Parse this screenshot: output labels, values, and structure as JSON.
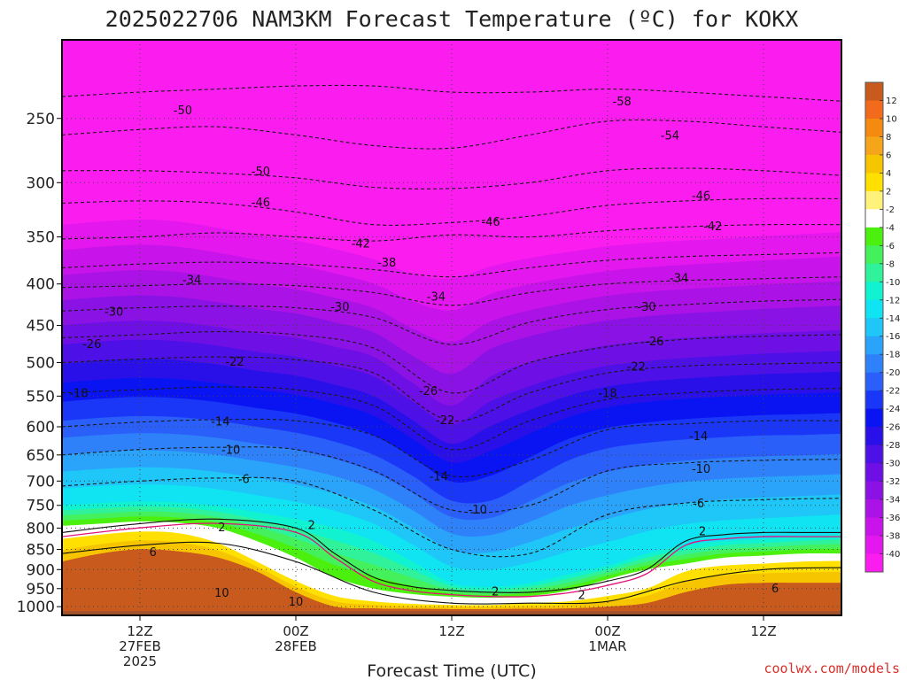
{
  "chart_data": {
    "type": "heatmap",
    "title": "2025022706 NAM3KM Forecast Temperature (ºC) for KOKX",
    "xlabel": "Forecast Time (UTC)",
    "ylabel": "",
    "credit": "coolwx.com/models",
    "y_axis": {
      "scale": "log",
      "range_hPa": [
        1025,
        200
      ],
      "reversed": true,
      "ticks": [
        "250",
        "300",
        "350",
        "400",
        "450",
        "500",
        "550",
        "600",
        "650",
        "700",
        "750",
        "800",
        "850",
        "900",
        "950",
        "1000"
      ]
    },
    "x_axis": {
      "range_hours": [
        0,
        60
      ],
      "ticks": [
        {
          "hour": 6,
          "lines": [
            "12Z",
            "27FEB",
            "2025"
          ]
        },
        {
          "hour": 18,
          "lines": [
            "00Z",
            "28FEB"
          ]
        },
        {
          "hour": 30,
          "lines": [
            "12Z"
          ]
        },
        {
          "hour": 42,
          "lines": [
            "00Z",
            "1MAR"
          ]
        },
        {
          "hour": 54,
          "lines": [
            "12Z"
          ]
        }
      ]
    },
    "grid": true,
    "fill_bands_hPa": {
      "x": [
        0,
        3,
        6,
        9,
        12,
        15,
        18,
        21,
        24,
        27,
        30,
        33,
        36,
        39,
        42,
        45,
        48,
        51,
        54,
        57,
        60
      ],
      "temperatures": [
        -40,
        -30,
        -20,
        -10,
        -2,
        2,
        6
      ],
      "pressures": [
        [
          315,
          312,
          310,
          312,
          318,
          325,
          330,
          338,
          348,
          360,
          360,
          352,
          345,
          340,
          335,
          332,
          330,
          328,
          326,
          324,
          322
        ],
        [
          450,
          446,
          444,
          446,
          452,
          460,
          466,
          478,
          492,
          530,
          565,
          520,
          500,
          486,
          476,
          470,
          466,
          463,
          460,
          458,
          456
        ],
        [
          590,
          585,
          582,
          584,
          590,
          600,
          610,
          626,
          650,
          690,
          740,
          740,
          700,
          660,
          638,
          628,
          622,
          618,
          615,
          614,
          612
        ],
        [
          750,
          745,
          742,
          744,
          752,
          765,
          780,
          800,
          830,
          880,
          935,
          945,
          935,
          912,
          890,
          860,
          840,
          830,
          825,
          820,
          815
        ],
        [
          795,
          790,
          785,
          788,
          800,
          830,
          870,
          920,
          950,
          965,
          972,
          975,
          970,
          955,
          925,
          900,
          885,
          870,
          865,
          860,
          860
        ],
        [
          825,
          815,
          808,
          812,
          835,
          880,
          930,
          970,
          985,
          992,
          995,
          995,
          990,
          985,
          970,
          950,
          905,
          890,
          885,
          880,
          878
        ],
        [
          880,
          860,
          850,
          855,
          870,
          905,
          960,
          1000,
          1005,
          1006,
          1007,
          1007,
          1006,
          1005,
          1000,
          990,
          960,
          940,
          935,
          935,
          935
        ]
      ]
    },
    "contours": [
      {
        "value": -58,
        "label": "-58",
        "x": [
          0,
          6,
          12,
          18,
          24,
          30,
          36,
          42,
          48,
          54,
          60
        ],
        "p": [
          235,
          232,
          230,
          228,
          228,
          232,
          232,
          230,
          232,
          235,
          238
        ]
      },
      {
        "value": -54,
        "label": "-54",
        "x": [
          0,
          6,
          12,
          18,
          24,
          30,
          36,
          42,
          48,
          54,
          60
        ],
        "p": [
          262,
          258,
          256,
          262,
          270,
          272,
          262,
          252,
          252,
          256,
          260
        ]
      },
      {
        "value": -50,
        "label": "-50",
        "x": [
          0,
          6,
          12,
          18,
          24,
          30,
          36,
          42,
          48,
          54,
          60
        ],
        "p": [
          290,
          290,
          292,
          296,
          304,
          305,
          300,
          290,
          288,
          290,
          294
        ]
      },
      {
        "value": -46,
        "label": "-46",
        "x": [
          0,
          6,
          12,
          18,
          24,
          30,
          36,
          42,
          48,
          54,
          60
        ],
        "p": [
          318,
          316,
          318,
          326,
          338,
          336,
          330,
          320,
          316,
          314,
          314
        ]
      },
      {
        "value": -42,
        "label": "-42",
        "x": [
          0,
          6,
          12,
          18,
          24,
          30,
          36,
          42,
          48,
          54,
          60
        ],
        "p": [
          352,
          350,
          346,
          350,
          354,
          348,
          350,
          344,
          340,
          338,
          338
        ]
      },
      {
        "value": -38,
        "label": "-38",
        "x": [
          0,
          6,
          12,
          18,
          24,
          30,
          36,
          42,
          48,
          54,
          60
        ],
        "p": [
          382,
          378,
          376,
          378,
          384,
          392,
          382,
          374,
          370,
          368,
          366
        ]
      },
      {
        "value": -34,
        "label": "-34",
        "x": [
          0,
          6,
          12,
          18,
          24,
          30,
          36,
          42,
          48,
          54,
          60
        ],
        "p": [
          404,
          402,
          400,
          402,
          410,
          425,
          410,
          400,
          396,
          394,
          392
        ]
      },
      {
        "value": -30,
        "label": "-30",
        "x": [
          0,
          6,
          12,
          18,
          24,
          30,
          36,
          42,
          48,
          54,
          60
        ],
        "p": [
          432,
          428,
          426,
          428,
          440,
          475,
          446,
          430,
          424,
          420,
          418
        ]
      },
      {
        "value": -26,
        "label": "-26",
        "x": [
          0,
          6,
          12,
          18,
          24,
          30,
          36,
          42,
          48,
          54,
          60
        ],
        "p": [
          466,
          462,
          458,
          462,
          480,
          545,
          500,
          478,
          468,
          464,
          462
        ]
      },
      {
        "value": -22,
        "label": "-22",
        "x": [
          0,
          6,
          12,
          18,
          24,
          30,
          36,
          42,
          48,
          54,
          60
        ],
        "p": [
          500,
          495,
          492,
          496,
          515,
          590,
          545,
          515,
          505,
          502,
          500
        ]
      },
      {
        "value": -18,
        "label": "-18",
        "x": [
          0,
          6,
          12,
          18,
          24,
          30,
          36,
          42,
          48,
          54,
          60
        ],
        "p": [
          545,
          540,
          536,
          540,
          565,
          640,
          590,
          555,
          545,
          540,
          538
        ]
      },
      {
        "value": -14,
        "label": "-14",
        "x": [
          0,
          6,
          12,
          18,
          24,
          30,
          36,
          42,
          48,
          54,
          60
        ],
        "p": [
          600,
          592,
          588,
          590,
          615,
          690,
          660,
          605,
          595,
          590,
          590
        ]
      },
      {
        "value": -10,
        "label": "-10",
        "x": [
          0,
          6,
          12,
          18,
          24,
          30,
          36,
          42,
          48,
          54,
          60
        ],
        "p": [
          650,
          640,
          636,
          640,
          680,
          760,
          750,
          680,
          665,
          660,
          658
        ]
      },
      {
        "value": -6,
        "label": "-6",
        "x": [
          0,
          6,
          12,
          18,
          24,
          30,
          36,
          42,
          48,
          54,
          60
        ],
        "p": [
          710,
          700,
          694,
          700,
          760,
          850,
          860,
          770,
          745,
          738,
          735
        ]
      },
      {
        "value": 2,
        "label": "2",
        "x": [
          0,
          6,
          12,
          18,
          21,
          24,
          27,
          30,
          33,
          36,
          39,
          42,
          45,
          48,
          51,
          54,
          57,
          60
        ],
        "p": [
          810,
          790,
          780,
          800,
          860,
          920,
          945,
          955,
          960,
          960,
          950,
          930,
          900,
          830,
          815,
          810,
          810,
          810
        ]
      },
      {
        "value": 6,
        "label": "6",
        "x": [
          0,
          6,
          12,
          18,
          24,
          30,
          36,
          42,
          48,
          54,
          60
        ],
        "p": [
          860,
          840,
          835,
          880,
          960,
          990,
          990,
          985,
          930,
          900,
          895
        ]
      }
    ],
    "contour_labels": [
      {
        "text": "-58",
        "x": 43.1,
        "p": 238
      },
      {
        "text": "-54",
        "x": 46.8,
        "p": 262
      },
      {
        "text": "-50",
        "x": 9.3,
        "p": 244
      },
      {
        "text": "-50",
        "x": 15.3,
        "p": 290
      },
      {
        "text": "-46",
        "x": 15.3,
        "p": 317
      },
      {
        "text": "-46",
        "x": 33.0,
        "p": 335
      },
      {
        "text": "-46",
        "x": 49.2,
        "p": 311
      },
      {
        "text": "-42",
        "x": 23.0,
        "p": 356
      },
      {
        "text": "-42",
        "x": 50.1,
        "p": 339
      },
      {
        "text": "-38",
        "x": 25.0,
        "p": 376
      },
      {
        "text": "-34",
        "x": 10.0,
        "p": 395
      },
      {
        "text": "-34",
        "x": 28.8,
        "p": 414
      },
      {
        "text": "-34",
        "x": 47.5,
        "p": 393
      },
      {
        "text": "-30",
        "x": 4.0,
        "p": 432
      },
      {
        "text": "-30",
        "x": 21.4,
        "p": 426
      },
      {
        "text": "-30",
        "x": 45.0,
        "p": 426
      },
      {
        "text": "-26",
        "x": 2.3,
        "p": 474
      },
      {
        "text": "-26",
        "x": 28.2,
        "p": 541
      },
      {
        "text": "-26",
        "x": 45.6,
        "p": 470
      },
      {
        "text": "-22",
        "x": 13.3,
        "p": 498
      },
      {
        "text": "-22",
        "x": 29.5,
        "p": 588
      },
      {
        "text": "-22",
        "x": 44.2,
        "p": 505
      },
      {
        "text": "-18",
        "x": 1.3,
        "p": 545
      },
      {
        "text": "-18",
        "x": 42.0,
        "p": 545
      },
      {
        "text": "-14",
        "x": 12.2,
        "p": 590
      },
      {
        "text": "-14",
        "x": 49.0,
        "p": 615
      },
      {
        "text": "-14",
        "x": 29.0,
        "p": 690
      },
      {
        "text": "-10",
        "x": 13.0,
        "p": 640
      },
      {
        "text": "-10",
        "x": 32.0,
        "p": 758
      },
      {
        "text": "-10",
        "x": 49.2,
        "p": 675
      },
      {
        "text": "-6",
        "x": 14.0,
        "p": 695
      },
      {
        "text": "-6",
        "x": 49.0,
        "p": 745
      },
      {
        "text": "2",
        "x": 12.3,
        "p": 797
      },
      {
        "text": "2",
        "x": 19.2,
        "p": 792
      },
      {
        "text": "2",
        "x": 49.3,
        "p": 806
      },
      {
        "text": "-2",
        "x": 33.2,
        "p": 956
      },
      {
        "text": "2",
        "x": 40.0,
        "p": 966
      },
      {
        "text": "6",
        "x": 7.0,
        "p": 855
      },
      {
        "text": "6",
        "x": 54.9,
        "p": 948
      },
      {
        "text": "10",
        "x": 12.3,
        "p": 960
      },
      {
        "text": "10",
        "x": 18.0,
        "p": 985
      }
    ],
    "colorbar": {
      "ticks": [
        "12",
        "10",
        "8",
        "6",
        "4",
        "2",
        "-2",
        "-4",
        "-6",
        "-8",
        "-10",
        "-12",
        "-14",
        "-16",
        "-18",
        "-20",
        "-22",
        "-24",
        "-26",
        "-28",
        "-30",
        "-32",
        "-34",
        "-36",
        "-38",
        "-40"
      ],
      "colors": [
        "#c85a1e",
        "#f26a1b",
        "#f48a10",
        "#f5a51a",
        "#f7c400",
        "#ffe000",
        "#fff27a",
        "#ffffff",
        "#4cf00e",
        "#44f05c",
        "#2ff29b",
        "#10f2d0",
        "#10e3f2",
        "#1ec7f8",
        "#2aa4fa",
        "#2f81fa",
        "#2a5ffa",
        "#1a37f8",
        "#0a14f2",
        "#2a10e8",
        "#4d10e6",
        "#6e0fe6",
        "#8a12e4",
        "#aa12e6",
        "#c814ea",
        "#e418ee",
        "#fb1df0"
      ]
    },
    "colors": {
      "ground": "#a0522d",
      "freezing_line": "#e0127a",
      "contour_dashed": "#1a1a1a",
      "contour_solid": "#111111",
      "frame": "#000000"
    }
  }
}
